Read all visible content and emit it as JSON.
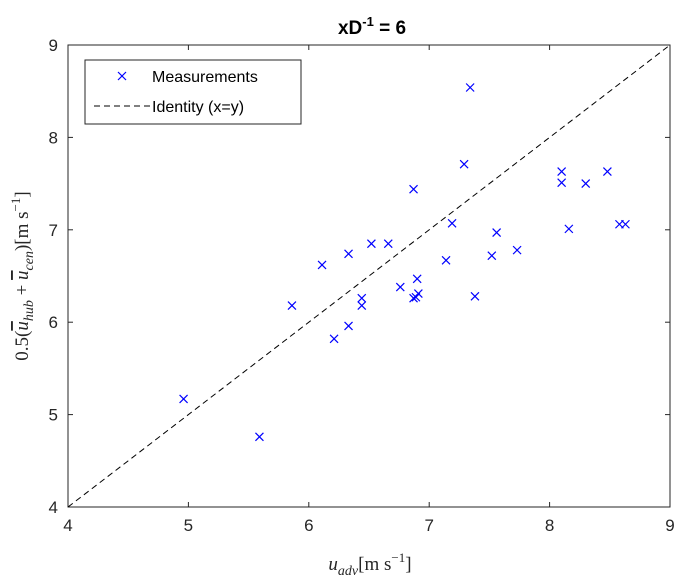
{
  "chart_data": {
    "type": "scatter",
    "title": "xD",
    "title_sup": "-1",
    "title_suffix": " = 6",
    "xlabel": {
      "base": "u",
      "sub": "adv",
      "unit": "[m s",
      "unit_sup": "−1",
      "unit_close": "]"
    },
    "ylabel": {
      "prefix": "0.5(",
      "a_base": "u",
      "a_sub": "hub",
      "plus": " + ",
      "b_base": "u",
      "b_sub": "cen",
      "suffix": ")[m s",
      "unit_sup": "−1",
      "unit_close": "]"
    },
    "xlim": [
      4,
      9
    ],
    "ylim": [
      4,
      9
    ],
    "xticks": [
      "4",
      "5",
      "6",
      "7",
      "8",
      "9"
    ],
    "yticks": [
      "4",
      "5",
      "6",
      "7",
      "8",
      "9"
    ],
    "grid": false,
    "legend_position": "top-left",
    "series": [
      {
        "name": "Measurements",
        "marker": "x",
        "color": "#0000ff",
        "points": [
          [
            4.96,
            5.17
          ],
          [
            5.59,
            4.76
          ],
          [
            5.86,
            6.18
          ],
          [
            6.11,
            6.62
          ],
          [
            6.21,
            5.82
          ],
          [
            6.33,
            5.96
          ],
          [
            6.33,
            6.74
          ],
          [
            6.44,
            6.26
          ],
          [
            6.44,
            6.18
          ],
          [
            6.52,
            6.85
          ],
          [
            6.66,
            6.85
          ],
          [
            6.76,
            6.38
          ],
          [
            6.87,
            6.26
          ],
          [
            6.87,
            7.44
          ],
          [
            6.89,
            6.27
          ],
          [
            6.9,
            6.47
          ],
          [
            6.91,
            6.31
          ],
          [
            7.14,
            6.67
          ],
          [
            7.19,
            7.07
          ],
          [
            7.29,
            7.71
          ],
          [
            7.34,
            8.54
          ],
          [
            7.38,
            6.28
          ],
          [
            7.52,
            6.72
          ],
          [
            7.56,
            6.97
          ],
          [
            7.73,
            6.78
          ],
          [
            8.1,
            7.63
          ],
          [
            8.1,
            7.51
          ],
          [
            8.16,
            7.01
          ],
          [
            8.3,
            7.5
          ],
          [
            8.48,
            7.63
          ],
          [
            8.58,
            7.06
          ],
          [
            8.63,
            7.06
          ]
        ]
      },
      {
        "name": "Identity (x=y)",
        "style": "dashed",
        "color": "#000000",
        "points": [
          [
            4,
            4
          ],
          [
            9,
            9
          ]
        ]
      }
    ]
  }
}
